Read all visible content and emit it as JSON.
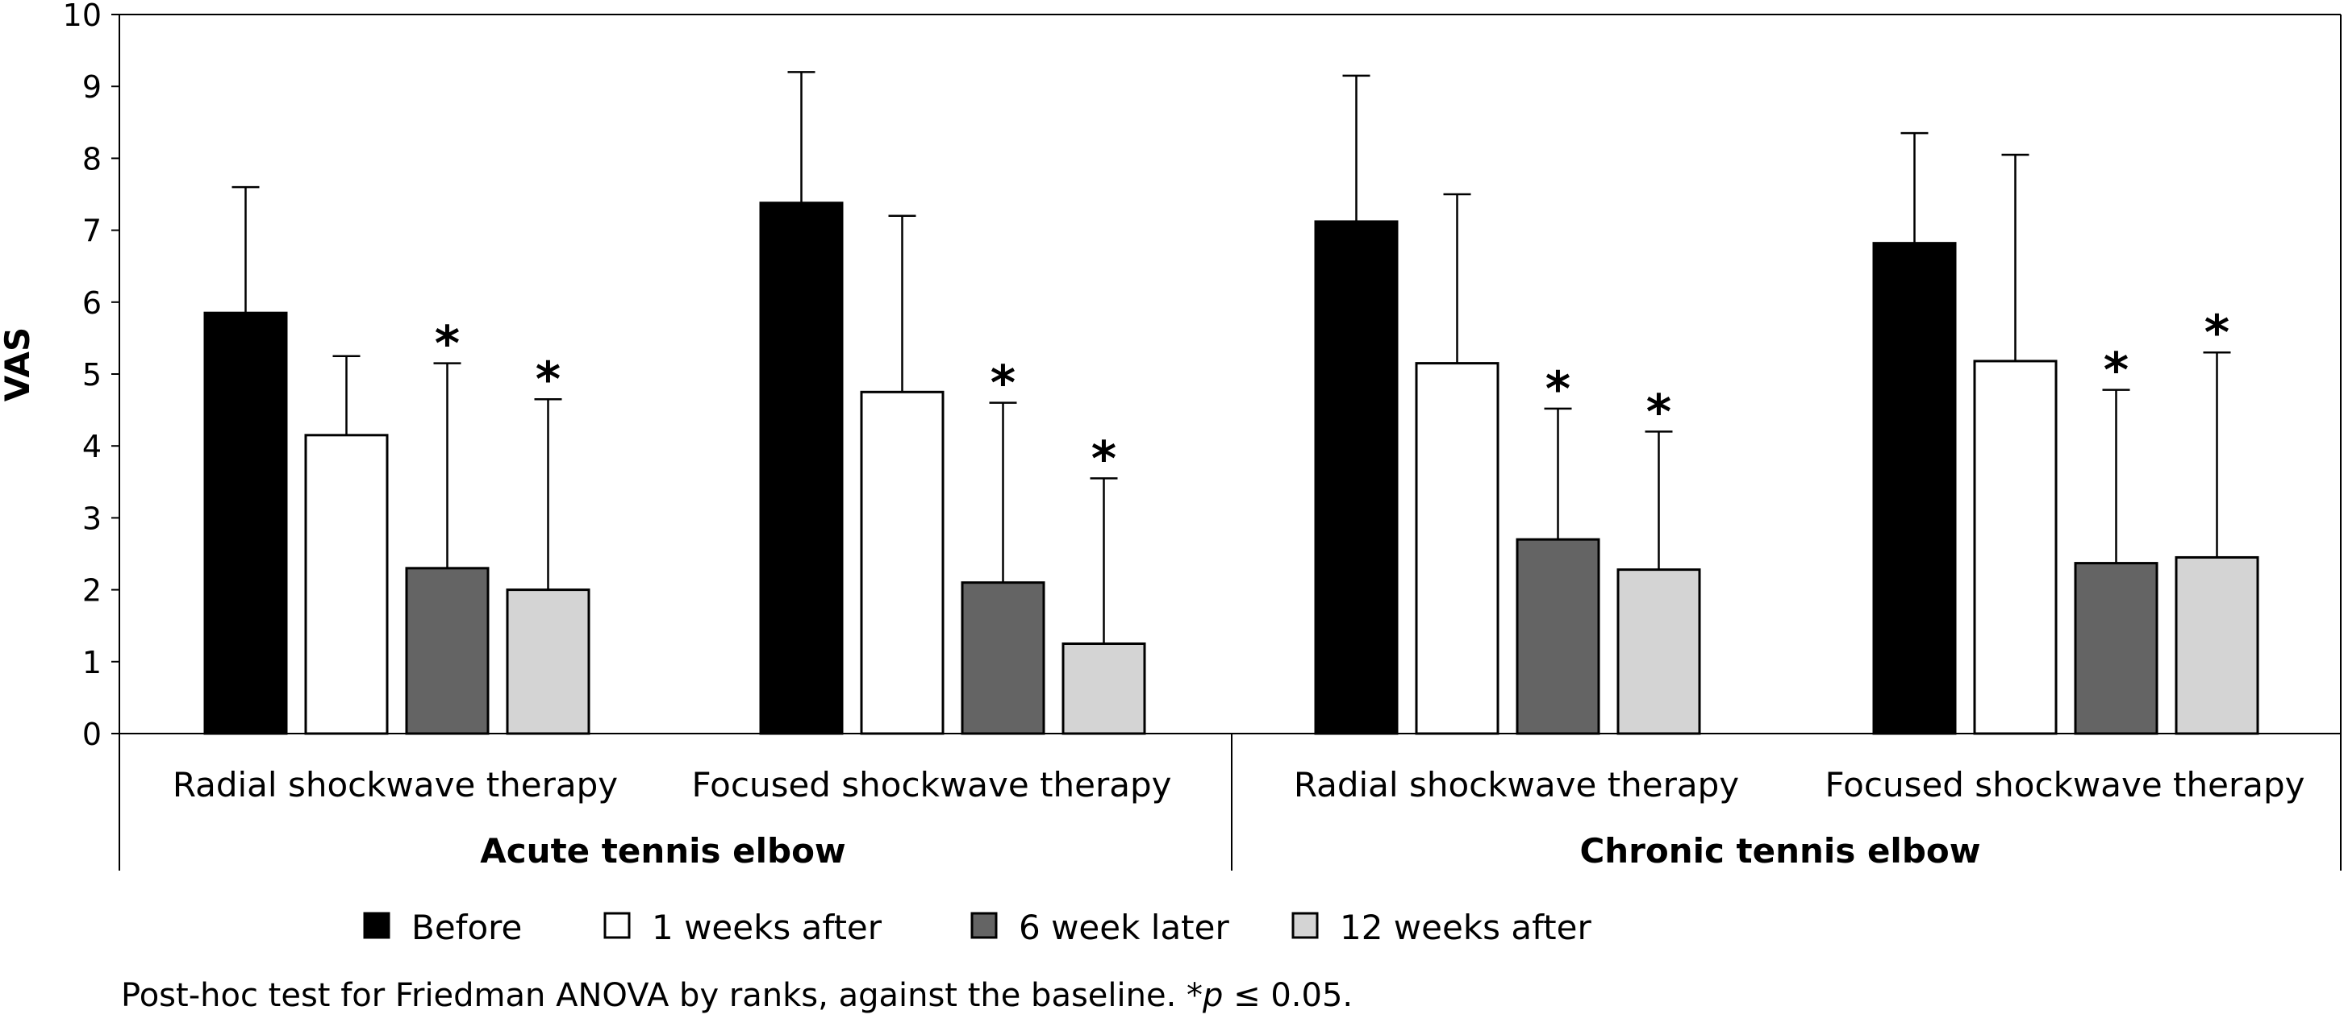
{
  "chart_data": {
    "type": "bar",
    "ylabel": "VAS",
    "xlabel": "",
    "ylim": [
      0,
      10
    ],
    "yticks": [
      "0",
      "1",
      "2",
      "3",
      "4",
      "5",
      "6",
      "7",
      "8",
      "9",
      "10"
    ],
    "grid": false,
    "legend_position": "bottom",
    "conditions": [
      {
        "name": "Acute tennis elbow",
        "groups": [
          "Radial shockwave therapy",
          "Focused shockwave therapy"
        ]
      },
      {
        "name": "Chronic tennis elbow",
        "groups": [
          "Radial shockwave therapy",
          "Focused shockwave therapy"
        ]
      }
    ],
    "categories": [
      "Radial shockwave therapy",
      "Focused shockwave therapy",
      "Radial shockwave therapy",
      "Focused shockwave therapy"
    ],
    "series": [
      {
        "name": "Before",
        "color": "#000000",
        "values": [
          5.85,
          7.38,
          7.12,
          6.82
        ],
        "error_upper": [
          7.6,
          9.2,
          9.15,
          8.35
        ],
        "significant": [
          false,
          false,
          false,
          false
        ]
      },
      {
        "name": "1 weeks after",
        "color": "#ffffff",
        "values": [
          4.15,
          4.75,
          5.15,
          5.18
        ],
        "error_upper": [
          5.25,
          7.2,
          7.5,
          8.05
        ],
        "significant": [
          false,
          false,
          false,
          false
        ]
      },
      {
        "name": "6 week later",
        "color": "#646464",
        "values": [
          2.3,
          2.1,
          2.7,
          2.37
        ],
        "error_upper": [
          5.15,
          4.6,
          4.52,
          4.78
        ],
        "significant": [
          true,
          true,
          true,
          true
        ]
      },
      {
        "name": "12 weeks after",
        "color": "#d4d4d4",
        "values": [
          2.0,
          1.25,
          2.28,
          2.45
        ],
        "error_upper": [
          4.65,
          3.55,
          4.2,
          5.3
        ],
        "significant": [
          true,
          true,
          true,
          true
        ]
      }
    ],
    "significance_marker": "*"
  },
  "note": {
    "prefix": "Post-hoc test for Friedman ANOVA by ranks, against the baseline. *",
    "p_symbol": "p",
    "suffix": " ≤ 0.05."
  }
}
